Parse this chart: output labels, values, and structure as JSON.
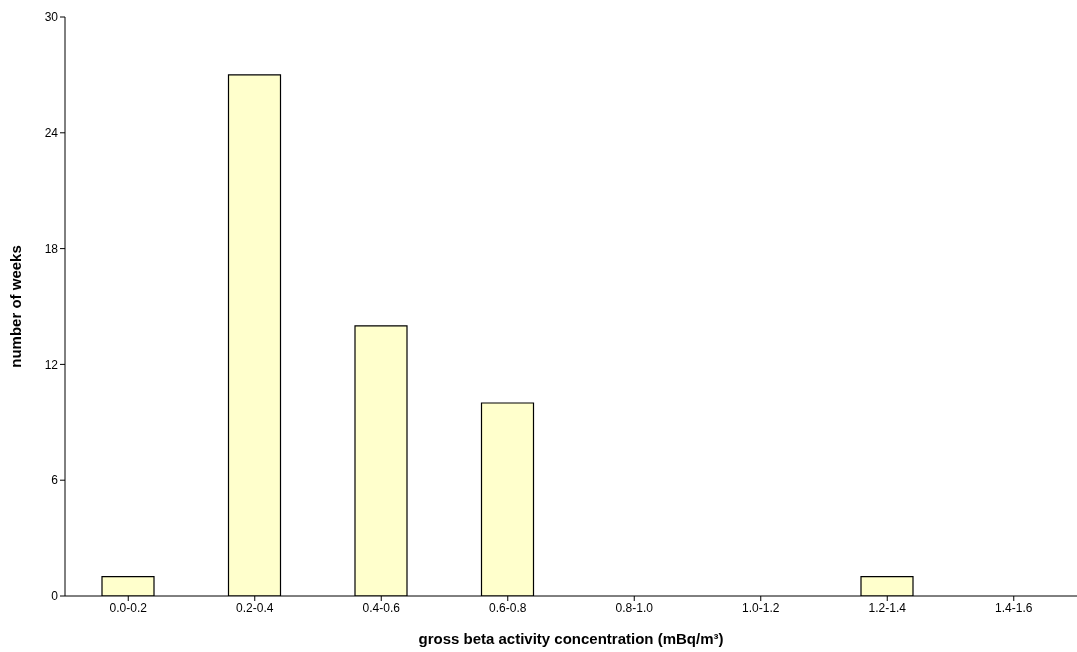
{
  "chart_data": {
    "type": "bar",
    "xlabel": "gross beta activity concentration (mBq/m³)",
    "ylabel": "number of weeks",
    "categories": [
      "0.0-0.2",
      "0.2-0.4",
      "0.4-0.6",
      "0.6-0.8",
      "0.8-1.0",
      "1.0-1.2",
      "1.2-1.4",
      "1.4-1.6"
    ],
    "values": [
      1,
      27,
      14,
      10,
      0,
      0,
      1,
      0
    ],
    "color": "#ffffcc",
    "ylim": [
      0,
      30
    ],
    "yticks": [
      0,
      6,
      12,
      18,
      24,
      30
    ],
    "grid": false
  }
}
